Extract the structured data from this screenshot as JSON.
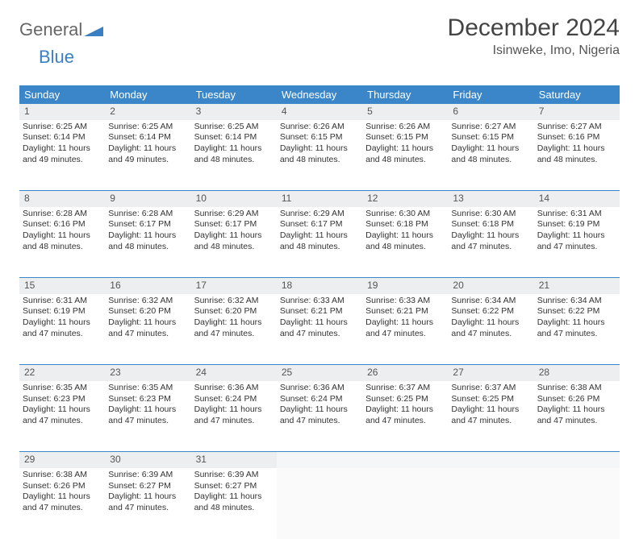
{
  "logo": {
    "text1": "General",
    "text2": "Blue"
  },
  "title": "December 2024",
  "location": "Isinweke, Imo, Nigeria",
  "colors": {
    "header_bg": "#3a86c8",
    "header_text": "#ffffff",
    "daynum_bg": "#eceef0",
    "border": "#3a86c8",
    "logo_blue": "#3a7fc4",
    "text": "#333333",
    "background": "#ffffff"
  },
  "day_headers": [
    "Sunday",
    "Monday",
    "Tuesday",
    "Wednesday",
    "Thursday",
    "Friday",
    "Saturday"
  ],
  "weeks": [
    [
      {
        "n": "1",
        "sr": "Sunrise: 6:25 AM",
        "ss": "Sunset: 6:14 PM",
        "d1": "Daylight: 11 hours",
        "d2": "and 49 minutes."
      },
      {
        "n": "2",
        "sr": "Sunrise: 6:25 AM",
        "ss": "Sunset: 6:14 PM",
        "d1": "Daylight: 11 hours",
        "d2": "and 49 minutes."
      },
      {
        "n": "3",
        "sr": "Sunrise: 6:25 AM",
        "ss": "Sunset: 6:14 PM",
        "d1": "Daylight: 11 hours",
        "d2": "and 48 minutes."
      },
      {
        "n": "4",
        "sr": "Sunrise: 6:26 AM",
        "ss": "Sunset: 6:15 PM",
        "d1": "Daylight: 11 hours",
        "d2": "and 48 minutes."
      },
      {
        "n": "5",
        "sr": "Sunrise: 6:26 AM",
        "ss": "Sunset: 6:15 PM",
        "d1": "Daylight: 11 hours",
        "d2": "and 48 minutes."
      },
      {
        "n": "6",
        "sr": "Sunrise: 6:27 AM",
        "ss": "Sunset: 6:15 PM",
        "d1": "Daylight: 11 hours",
        "d2": "and 48 minutes."
      },
      {
        "n": "7",
        "sr": "Sunrise: 6:27 AM",
        "ss": "Sunset: 6:16 PM",
        "d1": "Daylight: 11 hours",
        "d2": "and 48 minutes."
      }
    ],
    [
      {
        "n": "8",
        "sr": "Sunrise: 6:28 AM",
        "ss": "Sunset: 6:16 PM",
        "d1": "Daylight: 11 hours",
        "d2": "and 48 minutes."
      },
      {
        "n": "9",
        "sr": "Sunrise: 6:28 AM",
        "ss": "Sunset: 6:17 PM",
        "d1": "Daylight: 11 hours",
        "d2": "and 48 minutes."
      },
      {
        "n": "10",
        "sr": "Sunrise: 6:29 AM",
        "ss": "Sunset: 6:17 PM",
        "d1": "Daylight: 11 hours",
        "d2": "and 48 minutes."
      },
      {
        "n": "11",
        "sr": "Sunrise: 6:29 AM",
        "ss": "Sunset: 6:17 PM",
        "d1": "Daylight: 11 hours",
        "d2": "and 48 minutes."
      },
      {
        "n": "12",
        "sr": "Sunrise: 6:30 AM",
        "ss": "Sunset: 6:18 PM",
        "d1": "Daylight: 11 hours",
        "d2": "and 48 minutes."
      },
      {
        "n": "13",
        "sr": "Sunrise: 6:30 AM",
        "ss": "Sunset: 6:18 PM",
        "d1": "Daylight: 11 hours",
        "d2": "and 47 minutes."
      },
      {
        "n": "14",
        "sr": "Sunrise: 6:31 AM",
        "ss": "Sunset: 6:19 PM",
        "d1": "Daylight: 11 hours",
        "d2": "and 47 minutes."
      }
    ],
    [
      {
        "n": "15",
        "sr": "Sunrise: 6:31 AM",
        "ss": "Sunset: 6:19 PM",
        "d1": "Daylight: 11 hours",
        "d2": "and 47 minutes."
      },
      {
        "n": "16",
        "sr": "Sunrise: 6:32 AM",
        "ss": "Sunset: 6:20 PM",
        "d1": "Daylight: 11 hours",
        "d2": "and 47 minutes."
      },
      {
        "n": "17",
        "sr": "Sunrise: 6:32 AM",
        "ss": "Sunset: 6:20 PM",
        "d1": "Daylight: 11 hours",
        "d2": "and 47 minutes."
      },
      {
        "n": "18",
        "sr": "Sunrise: 6:33 AM",
        "ss": "Sunset: 6:21 PM",
        "d1": "Daylight: 11 hours",
        "d2": "and 47 minutes."
      },
      {
        "n": "19",
        "sr": "Sunrise: 6:33 AM",
        "ss": "Sunset: 6:21 PM",
        "d1": "Daylight: 11 hours",
        "d2": "and 47 minutes."
      },
      {
        "n": "20",
        "sr": "Sunrise: 6:34 AM",
        "ss": "Sunset: 6:22 PM",
        "d1": "Daylight: 11 hours",
        "d2": "and 47 minutes."
      },
      {
        "n": "21",
        "sr": "Sunrise: 6:34 AM",
        "ss": "Sunset: 6:22 PM",
        "d1": "Daylight: 11 hours",
        "d2": "and 47 minutes."
      }
    ],
    [
      {
        "n": "22",
        "sr": "Sunrise: 6:35 AM",
        "ss": "Sunset: 6:23 PM",
        "d1": "Daylight: 11 hours",
        "d2": "and 47 minutes."
      },
      {
        "n": "23",
        "sr": "Sunrise: 6:35 AM",
        "ss": "Sunset: 6:23 PM",
        "d1": "Daylight: 11 hours",
        "d2": "and 47 minutes."
      },
      {
        "n": "24",
        "sr": "Sunrise: 6:36 AM",
        "ss": "Sunset: 6:24 PM",
        "d1": "Daylight: 11 hours",
        "d2": "and 47 minutes."
      },
      {
        "n": "25",
        "sr": "Sunrise: 6:36 AM",
        "ss": "Sunset: 6:24 PM",
        "d1": "Daylight: 11 hours",
        "d2": "and 47 minutes."
      },
      {
        "n": "26",
        "sr": "Sunrise: 6:37 AM",
        "ss": "Sunset: 6:25 PM",
        "d1": "Daylight: 11 hours",
        "d2": "and 47 minutes."
      },
      {
        "n": "27",
        "sr": "Sunrise: 6:37 AM",
        "ss": "Sunset: 6:25 PM",
        "d1": "Daylight: 11 hours",
        "d2": "and 47 minutes."
      },
      {
        "n": "28",
        "sr": "Sunrise: 6:38 AM",
        "ss": "Sunset: 6:26 PM",
        "d1": "Daylight: 11 hours",
        "d2": "and 47 minutes."
      }
    ],
    [
      {
        "n": "29",
        "sr": "Sunrise: 6:38 AM",
        "ss": "Sunset: 6:26 PM",
        "d1": "Daylight: 11 hours",
        "d2": "and 47 minutes."
      },
      {
        "n": "30",
        "sr": "Sunrise: 6:39 AM",
        "ss": "Sunset: 6:27 PM",
        "d1": "Daylight: 11 hours",
        "d2": "and 47 minutes."
      },
      {
        "n": "31",
        "sr": "Sunrise: 6:39 AM",
        "ss": "Sunset: 6:27 PM",
        "d1": "Daylight: 11 hours",
        "d2": "and 48 minutes."
      },
      null,
      null,
      null,
      null
    ]
  ]
}
